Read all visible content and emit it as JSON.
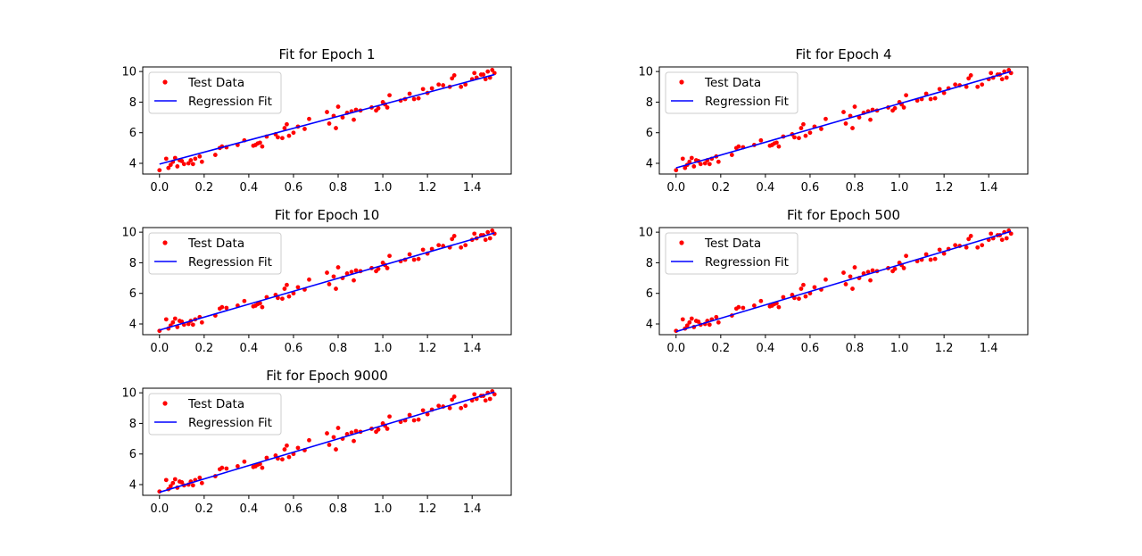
{
  "chart_data": [
    {
      "type": "scatter",
      "title": "Fit for Epoch 1",
      "xlabel": "",
      "ylabel": "",
      "xlim": [
        -0.075,
        1.575
      ],
      "ylim": [
        3.3,
        10.3
      ],
      "xticks": [
        "0.0",
        "0.2",
        "0.4",
        "0.6",
        "0.8",
        "1.0",
        "1.2",
        "1.4"
      ],
      "yticks": [
        "4",
        "6",
        "8",
        "10"
      ],
      "grid": false,
      "legend": "upper left",
      "series": [
        {
          "name": "Test Data",
          "kind": "points",
          "color": "#ff0000"
        },
        {
          "name": "Regression Fit",
          "kind": "line",
          "color": "#0000ff",
          "x": [
            0.0,
            1.5
          ],
          "y": [
            3.95,
            9.8
          ]
        }
      ]
    },
    {
      "type": "scatter",
      "title": "Fit for Epoch 4",
      "xlabel": "",
      "ylabel": "",
      "xlim": [
        -0.075,
        1.575
      ],
      "ylim": [
        3.3,
        10.3
      ],
      "xticks": [
        "0.0",
        "0.2",
        "0.4",
        "0.6",
        "0.8",
        "1.0",
        "1.2",
        "1.4"
      ],
      "yticks": [
        "4",
        "6",
        "8",
        "10"
      ],
      "grid": false,
      "legend": "upper left",
      "series": [
        {
          "name": "Test Data",
          "kind": "points",
          "color": "#ff0000"
        },
        {
          "name": "Regression Fit",
          "kind": "line",
          "color": "#0000ff",
          "x": [
            0.0,
            1.5
          ],
          "y": [
            3.7,
            10.0
          ]
        }
      ]
    },
    {
      "type": "scatter",
      "title": "Fit for Epoch 10",
      "xlabel": "",
      "ylabel": "",
      "xlim": [
        -0.075,
        1.575
      ],
      "ylim": [
        3.3,
        10.3
      ],
      "xticks": [
        "0.0",
        "0.2",
        "0.4",
        "0.6",
        "0.8",
        "1.0",
        "1.2",
        "1.4"
      ],
      "yticks": [
        "4",
        "6",
        "8",
        "10"
      ],
      "grid": false,
      "legend": "upper left",
      "series": [
        {
          "name": "Test Data",
          "kind": "points",
          "color": "#ff0000"
        },
        {
          "name": "Regression Fit",
          "kind": "line",
          "color": "#0000ff",
          "x": [
            0.0,
            1.5
          ],
          "y": [
            3.6,
            9.95
          ]
        }
      ]
    },
    {
      "type": "scatter",
      "title": "Fit for Epoch 500",
      "xlabel": "",
      "ylabel": "",
      "xlim": [
        -0.075,
        1.575
      ],
      "ylim": [
        3.3,
        10.3
      ],
      "xticks": [
        "0.0",
        "0.2",
        "0.4",
        "0.6",
        "0.8",
        "1.0",
        "1.2",
        "1.4"
      ],
      "yticks": [
        "4",
        "6",
        "8",
        "10"
      ],
      "grid": false,
      "legend": "upper left",
      "series": [
        {
          "name": "Test Data",
          "kind": "points",
          "color": "#ff0000"
        },
        {
          "name": "Regression Fit",
          "kind": "line",
          "color": "#0000ff",
          "x": [
            0.0,
            1.5
          ],
          "y": [
            3.5,
            10.05
          ]
        }
      ]
    },
    {
      "type": "scatter",
      "title": "Fit for Epoch 9000",
      "xlabel": "",
      "ylabel": "",
      "xlim": [
        -0.075,
        1.575
      ],
      "ylim": [
        3.3,
        10.3
      ],
      "xticks": [
        "0.0",
        "0.2",
        "0.4",
        "0.6",
        "0.8",
        "1.0",
        "1.2",
        "1.4"
      ],
      "yticks": [
        "4",
        "6",
        "8",
        "10"
      ],
      "grid": false,
      "legend": "upper left",
      "series": [
        {
          "name": "Test Data",
          "kind": "points",
          "color": "#ff0000"
        },
        {
          "name": "Regression Fit",
          "kind": "line",
          "color": "#0000ff",
          "x": [
            0.0,
            1.5
          ],
          "y": [
            3.5,
            10.05
          ]
        }
      ]
    }
  ],
  "test_data": {
    "x": [
      0.0,
      0.03,
      0.04,
      0.05,
      0.06,
      0.07,
      0.08,
      0.09,
      0.1,
      0.11,
      0.13,
      0.14,
      0.15,
      0.16,
      0.18,
      0.19,
      0.25,
      0.27,
      0.28,
      0.3,
      0.35,
      0.38,
      0.42,
      0.43,
      0.44,
      0.45,
      0.46,
      0.48,
      0.52,
      0.53,
      0.55,
      0.56,
      0.57,
      0.58,
      0.6,
      0.62,
      0.65,
      0.67,
      0.75,
      0.76,
      0.78,
      0.79,
      0.8,
      0.82,
      0.84,
      0.86,
      0.87,
      0.88,
      0.9,
      0.95,
      0.97,
      0.98,
      1.0,
      1.01,
      1.02,
      1.03,
      1.08,
      1.1,
      1.12,
      1.14,
      1.16,
      1.18,
      1.2,
      1.22,
      1.25,
      1.27,
      1.3,
      1.31,
      1.32,
      1.35,
      1.37,
      1.4,
      1.41,
      1.42,
      1.44,
      1.45,
      1.46,
      1.47,
      1.48,
      1.49,
      1.5
    ],
    "y": [
      3.55,
      4.3,
      3.7,
      3.9,
      4.1,
      4.35,
      3.8,
      4.2,
      4.15,
      3.95,
      4.0,
      4.2,
      3.95,
      4.3,
      4.45,
      4.1,
      4.55,
      5.0,
      5.1,
      5.05,
      5.2,
      5.5,
      5.15,
      5.2,
      5.3,
      5.35,
      5.1,
      5.75,
      5.9,
      5.7,
      5.65,
      6.3,
      6.55,
      5.8,
      6.0,
      6.4,
      6.25,
      6.9,
      7.35,
      6.6,
      7.1,
      6.3,
      7.7,
      7.0,
      7.3,
      7.4,
      6.85,
      7.5,
      7.45,
      7.65,
      7.45,
      7.6,
      8.0,
      7.85,
      7.65,
      8.45,
      8.1,
      8.2,
      8.55,
      8.2,
      8.25,
      8.85,
      8.6,
      8.9,
      9.15,
      9.1,
      9.0,
      9.55,
      9.75,
      9.0,
      9.15,
      9.5,
      9.9,
      9.6,
      9.8,
      9.8,
      9.5,
      10.0,
      9.6,
      10.1,
      9.9
    ]
  }
}
